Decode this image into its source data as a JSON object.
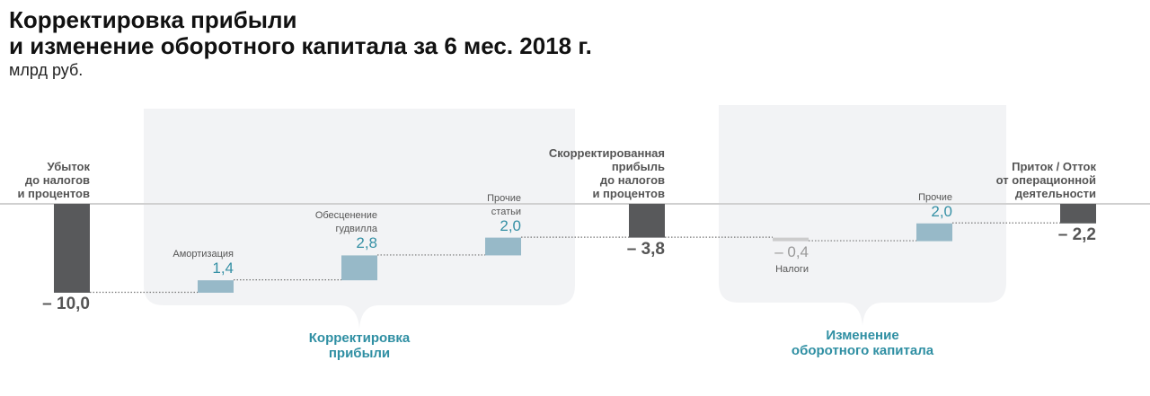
{
  "title": "Корректировка прибыли\nи изменение оборотного капитала за 6 мес. 2018 г.",
  "unit": "млрд руб.",
  "colors": {
    "total": "#58595b",
    "increase": "#97b9c8",
    "decrease": "#cccccc",
    "panel": "#f2f3f5",
    "accent": "#2f8fa3"
  },
  "chart_data": {
    "type": "waterfall",
    "categories": [
      "Убыток\nдо налогов\nи  процентов",
      "Амортизация",
      "Обесценение\nгудвилла",
      "Прочие\nстатьи",
      "Скорректированная\nприбыль\nдо налогов\nи процентов",
      "Налоги",
      "Прочие",
      "Приток / Отток\nот операционной\nдеятельности"
    ],
    "values": [
      -10.0,
      1.4,
      2.8,
      2.0,
      -3.8,
      -0.4,
      2.0,
      -2.2
    ],
    "value_labels": [
      "– 10,0",
      "1,4",
      "2,8",
      "2,0",
      "– 3,8",
      "– 0,4",
      "2,0",
      "– 2,2"
    ],
    "kinds": [
      "total",
      "increase",
      "increase",
      "increase",
      "total",
      "decrease",
      "increase",
      "total"
    ],
    "groups": [
      {
        "label": "Корректировка\nприбыли",
        "from": 1,
        "to": 3
      },
      {
        "label": "Изменение\nоборотного капитала",
        "from": 5,
        "to": 6
      }
    ],
    "ylim": [
      -10.5,
      0
    ]
  }
}
